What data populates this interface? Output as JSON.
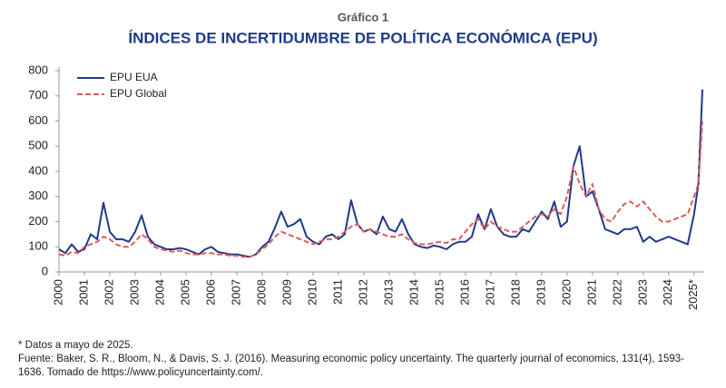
{
  "chart_data": {
    "type": "line",
    "kicker": "Gráfico 1",
    "title": "ÍNDICES DE INCERTIDUMBRE DE POLÍTICA ECONÓMICA (EPU)",
    "x": [
      2000,
      2000.25,
      2000.5,
      2000.75,
      2001,
      2001.25,
      2001.5,
      2001.75,
      2002,
      2002.25,
      2002.5,
      2002.75,
      2003,
      2003.25,
      2003.5,
      2003.75,
      2004,
      2004.25,
      2004.5,
      2004.75,
      2005,
      2005.25,
      2005.5,
      2005.75,
      2006,
      2006.25,
      2006.5,
      2006.75,
      2007,
      2007.25,
      2007.5,
      2007.75,
      2008,
      2008.25,
      2008.5,
      2008.75,
      2009,
      2009.25,
      2009.5,
      2009.75,
      2010,
      2010.25,
      2010.5,
      2010.75,
      2011,
      2011.25,
      2011.5,
      2011.75,
      2012,
      2012.25,
      2012.5,
      2012.75,
      2013,
      2013.25,
      2013.5,
      2013.75,
      2014,
      2014.25,
      2014.5,
      2014.75,
      2015,
      2015.25,
      2015.5,
      2015.75,
      2016,
      2016.25,
      2016.5,
      2016.75,
      2017,
      2017.25,
      2017.5,
      2017.75,
      2018,
      2018.25,
      2018.5,
      2018.75,
      2019,
      2019.25,
      2019.5,
      2019.75,
      2020,
      2020.25,
      2020.5,
      2020.75,
      2021,
      2021.25,
      2021.5,
      2021.75,
      2022,
      2022.25,
      2022.5,
      2022.75,
      2023,
      2023.25,
      2023.5,
      2023.75,
      2024,
      2024.25,
      2024.5,
      2024.75,
      2025,
      2025.17,
      2025.33
    ],
    "series": [
      {
        "name": "EPU EUA",
        "color": "#1f3a8a",
        "dash": false,
        "values": [
          90,
          75,
          110,
          80,
          90,
          150,
          130,
          275,
          160,
          130,
          130,
          120,
          160,
          225,
          140,
          110,
          100,
          90,
          90,
          95,
          90,
          80,
          70,
          90,
          100,
          80,
          75,
          70,
          70,
          65,
          60,
          70,
          100,
          120,
          175,
          240,
          180,
          190,
          210,
          140,
          120,
          110,
          140,
          150,
          130,
          150,
          285,
          190,
          160,
          170,
          150,
          220,
          170,
          160,
          210,
          150,
          110,
          100,
          95,
          105,
          100,
          90,
          110,
          120,
          120,
          140,
          230,
          170,
          250,
          180,
          150,
          140,
          140,
          170,
          160,
          200,
          240,
          210,
          280,
          180,
          200,
          420,
          500,
          300,
          320,
          250,
          170,
          160,
          150,
          170,
          170,
          180,
          120,
          140,
          120,
          130,
          140,
          130,
          120,
          110,
          230,
          350,
          725
        ]
      },
      {
        "name": "EPU Global",
        "color": "#e05a5a",
        "dash": true,
        "values": [
          70,
          65,
          80,
          75,
          100,
          110,
          120,
          140,
          130,
          110,
          100,
          100,
          120,
          150,
          130,
          100,
          90,
          85,
          80,
          85,
          75,
          70,
          70,
          75,
          75,
          70,
          70,
          65,
          65,
          60,
          60,
          70,
          90,
          110,
          140,
          160,
          150,
          140,
          130,
          120,
          110,
          120,
          130,
          130,
          140,
          160,
          180,
          190,
          160,
          170,
          160,
          150,
          140,
          140,
          150,
          130,
          115,
          110,
          110,
          115,
          120,
          115,
          130,
          130,
          160,
          190,
          210,
          170,
          200,
          180,
          170,
          160,
          160,
          180,
          200,
          220,
          230,
          220,
          250,
          230,
          300,
          420,
          350,
          300,
          350,
          250,
          210,
          200,
          240,
          270,
          280,
          260,
          280,
          250,
          220,
          200,
          200,
          210,
          220,
          230,
          300,
          350,
          600
        ]
      }
    ],
    "xlim": [
      2000,
      2025.4
    ],
    "xticks": [
      2000,
      2001,
      2002,
      2003,
      2004,
      2005,
      2006,
      2007,
      2008,
      2009,
      2010,
      2011,
      2012,
      2013,
      2014,
      2015,
      2016,
      2017,
      2018,
      2019,
      2020,
      2021,
      2022,
      2023,
      2024,
      {
        "value": 2025,
        "label": "2025*"
      }
    ],
    "ylim": [
      0,
      800
    ],
    "yticks": [
      0,
      100,
      200,
      300,
      400,
      500,
      600,
      700,
      800
    ],
    "legend": "upper left",
    "notes": [
      "* Datos a mayo de 2025.",
      "Fuente: Baker, S. R., Bloom, N., & Davis, S. J. (2016). Measuring economic policy uncertainty. The quarterly journal of economics, 131(4), 1593-1636. Tomado de https://www.policyuncertainty.com/."
    ]
  }
}
